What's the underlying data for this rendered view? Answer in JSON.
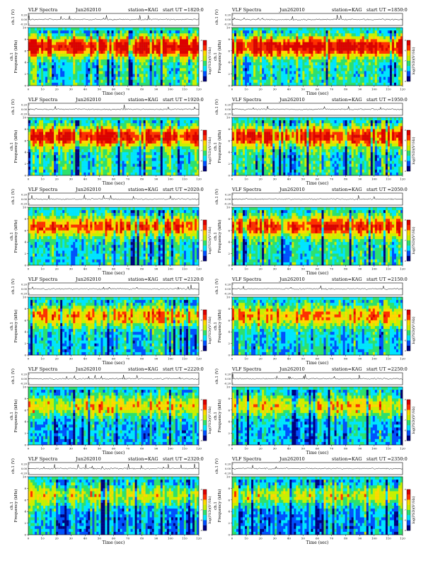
{
  "page": {
    "panel_header": {
      "product": "VLF Spectra",
      "date": "Jun262010",
      "station": "station=KAG",
      "start_prefix": "start  UT  ="
    },
    "wave_axis_label": "ch.1 (V)",
    "freq_axis_label": "Frequency  (kHz)",
    "freq_axis_channel": "ch.1",
    "time_axis_label": "Time  (sec)",
    "colorbar_label": "log(PSD)(V²/Hz)",
    "colorbar_ticks": [
      "-5",
      "-6",
      "-7",
      "-8",
      "-9"
    ],
    "colorscale": [
      "#000080",
      "#0050ff",
      "#00e5ff",
      "#2de06e",
      "#c8f000",
      "#ffd800",
      "#ff3000",
      "#dd0000"
    ]
  },
  "chart_data": [
    {
      "type": "heatmap",
      "title": "VLF Spectra  Jun262010  station=KAG  start UT =1820:0",
      "start_ut": "1820:0",
      "xlabel": "Time (sec)",
      "ylabel": "Frequency (kHz)",
      "xlim": [
        0,
        120
      ],
      "ylim": [
        0,
        10
      ],
      "x_ticks": [
        "0",
        "10",
        "20",
        "30",
        "40",
        "50",
        "60",
        "70",
        "80",
        "90",
        "100",
        "110",
        "120"
      ],
      "y_ticks": [
        "0",
        "2",
        "4",
        "6",
        "8",
        "10"
      ],
      "wave_ticks": [
        "0.20",
        "0.00",
        "-0.20"
      ],
      "wave_ylim": [
        -0.2,
        0.2
      ],
      "intensity": 0.9
    },
    {
      "type": "heatmap",
      "title": "VLF Spectra  Jun262010  station=KAG  start UT =1850:0",
      "start_ut": "1850:0",
      "xlabel": "Time (sec)",
      "ylabel": "Frequency (kHz)",
      "xlim": [
        0,
        120
      ],
      "ylim": [
        0,
        10
      ],
      "x_ticks": [
        "0",
        "10",
        "20",
        "30",
        "40",
        "50",
        "60",
        "70",
        "80",
        "90",
        "100",
        "110",
        "120"
      ],
      "y_ticks": [
        "0",
        "2",
        "4",
        "6",
        "8",
        "10"
      ],
      "wave_ticks": [
        "0.20",
        "0.00",
        "-0.20"
      ],
      "wave_ylim": [
        -0.2,
        0.2
      ],
      "intensity": 0.88
    },
    {
      "type": "heatmap",
      "title": "VLF Spectra  Jun262010  station=KAG  start UT =1920:0",
      "start_ut": "1920:0",
      "xlabel": "Time (sec)",
      "ylabel": "Frequency (kHz)",
      "xlim": [
        0,
        120
      ],
      "ylim": [
        0,
        10
      ],
      "x_ticks": [
        "0",
        "10",
        "20",
        "30",
        "40",
        "50",
        "60",
        "70",
        "80",
        "90",
        "100",
        "110",
        "120"
      ],
      "y_ticks": [
        "0",
        "2",
        "4",
        "6",
        "8",
        "10"
      ],
      "wave_ticks": [
        "0.20",
        "0.00",
        "-0.20"
      ],
      "wave_ylim": [
        -0.2,
        0.2
      ],
      "intensity": 0.83
    },
    {
      "type": "heatmap",
      "title": "VLF Spectra  Jun262010  station=KAG  start UT =1950:0",
      "start_ut": "1950:0",
      "xlabel": "Time (sec)",
      "ylabel": "Frequency (kHz)",
      "xlim": [
        0,
        120
      ],
      "ylim": [
        0,
        10
      ],
      "x_ticks": [
        "0",
        "10",
        "20",
        "30",
        "40",
        "50",
        "60",
        "70",
        "80",
        "90",
        "100",
        "110",
        "120"
      ],
      "y_ticks": [
        "0",
        "2",
        "4",
        "6",
        "8",
        "10"
      ],
      "wave_ticks": [
        "0.20",
        "0.00",
        "-0.20"
      ],
      "wave_ylim": [
        -0.2,
        0.2
      ],
      "intensity": 0.78
    },
    {
      "type": "heatmap",
      "title": "VLF Spectra  Jun262010  station=KAG  start UT =2020:0",
      "start_ut": "2020:0",
      "xlabel": "Time (sec)",
      "ylabel": "Frequency (kHz)",
      "xlim": [
        0,
        120
      ],
      "ylim": [
        0,
        10
      ],
      "x_ticks": [
        "0",
        "10",
        "20",
        "30",
        "40",
        "50",
        "60",
        "70",
        "80",
        "90",
        "100",
        "110",
        "120"
      ],
      "y_ticks": [
        "0",
        "2",
        "4",
        "6",
        "8",
        "10"
      ],
      "wave_ticks": [
        "0.20",
        "0.00",
        "-0.20"
      ],
      "wave_ylim": [
        -0.2,
        0.2
      ],
      "intensity": 0.7
    },
    {
      "type": "heatmap",
      "title": "VLF Spectra  Jun262010  station=KAG  start UT =2050:0",
      "start_ut": "2050:0",
      "xlabel": "Time (sec)",
      "ylabel": "Frequency (kHz)",
      "xlim": [
        0,
        120
      ],
      "ylim": [
        0,
        10
      ],
      "x_ticks": [
        "0",
        "10",
        "20",
        "30",
        "40",
        "50",
        "60",
        "70",
        "80",
        "90",
        "100",
        "110",
        "120"
      ],
      "y_ticks": [
        "0",
        "2",
        "4",
        "6",
        "8",
        "10"
      ],
      "wave_ticks": [
        "0.20",
        "0.00",
        "-0.20"
      ],
      "wave_ylim": [
        -0.2,
        0.2
      ],
      "intensity": 0.72
    },
    {
      "type": "heatmap",
      "title": "VLF Spectra  Jun262010  station=KAG  start UT =2120:0",
      "start_ut": "2120:0",
      "xlabel": "Time (sec)",
      "ylabel": "Frequency (kHz)",
      "xlim": [
        0,
        120
      ],
      "ylim": [
        0,
        10
      ],
      "x_ticks": [
        "0",
        "10",
        "20",
        "30",
        "40",
        "50",
        "60",
        "70",
        "80",
        "90",
        "100",
        "110",
        "120"
      ],
      "y_ticks": [
        "0",
        "2",
        "4",
        "6",
        "8",
        "10"
      ],
      "wave_ticks": [
        "0.20",
        "0.00",
        "-0.20"
      ],
      "wave_ylim": [
        -0.2,
        0.2
      ],
      "intensity": 0.62
    },
    {
      "type": "heatmap",
      "title": "VLF Spectra  Jun262010  station=KAG  start UT =2150:0",
      "start_ut": "2150:0",
      "xlabel": "Time (sec)",
      "ylabel": "Frequency (kHz)",
      "xlim": [
        0,
        120
      ],
      "ylim": [
        0,
        10
      ],
      "x_ticks": [
        "0",
        "10",
        "20",
        "30",
        "40",
        "50",
        "60",
        "70",
        "80",
        "90",
        "100",
        "110",
        "120"
      ],
      "y_ticks": [
        "0",
        "2",
        "4",
        "6",
        "8",
        "10"
      ],
      "wave_ticks": [
        "0.20",
        "0.00",
        "-0.20"
      ],
      "wave_ylim": [
        -0.2,
        0.2
      ],
      "intensity": 0.6
    },
    {
      "type": "heatmap",
      "title": "VLF Spectra  Jun262010  station=KAG  start UT =2220:0",
      "start_ut": "2220:0",
      "xlabel": "Time (sec)",
      "ylabel": "Frequency (kHz)",
      "xlim": [
        0,
        120
      ],
      "ylim": [
        0,
        10
      ],
      "x_ticks": [
        "0",
        "10",
        "20",
        "30",
        "40",
        "50",
        "60",
        "70",
        "80",
        "90",
        "100",
        "110",
        "120"
      ],
      "y_ticks": [
        "0",
        "2",
        "4",
        "6",
        "8",
        "10"
      ],
      "wave_ticks": [
        "0.20",
        "0.00",
        "-0.20"
      ],
      "wave_ylim": [
        -0.2,
        0.2
      ],
      "intensity": 0.53
    },
    {
      "type": "heatmap",
      "title": "VLF Spectra  Jun262010  station=KAG  start UT =2250:0",
      "start_ut": "2250:0",
      "xlabel": "Time (sec)",
      "ylabel": "Frequency (kHz)",
      "xlim": [
        0,
        120
      ],
      "ylim": [
        0,
        10
      ],
      "x_ticks": [
        "0",
        "10",
        "20",
        "30",
        "40",
        "50",
        "60",
        "70",
        "80",
        "90",
        "100",
        "110",
        "120"
      ],
      "y_ticks": [
        "0",
        "2",
        "4",
        "6",
        "8",
        "10"
      ],
      "wave_ticks": [
        "0.20",
        "0.00",
        "-0.20"
      ],
      "wave_ylim": [
        -0.2,
        0.2
      ],
      "intensity": 0.52
    },
    {
      "type": "heatmap",
      "title": "VLF Spectra  Jun262010  station=KAG  start UT =2320:0",
      "start_ut": "2320:0",
      "xlabel": "Time (sec)",
      "ylabel": "Frequency (kHz)",
      "xlim": [
        0,
        120
      ],
      "ylim": [
        0,
        10
      ],
      "x_ticks": [
        "0",
        "10",
        "20",
        "30",
        "40",
        "50",
        "60",
        "70",
        "80",
        "90",
        "100",
        "110",
        "120"
      ],
      "y_ticks": [
        "0",
        "2",
        "4",
        "6",
        "8",
        "10"
      ],
      "wave_ticks": [
        "0.20",
        "0.00",
        "-0.20"
      ],
      "wave_ylim": [
        -0.2,
        0.2
      ],
      "intensity": 0.45
    },
    {
      "type": "heatmap",
      "title": "VLF Spectra  Jun262010  station=KAG  start UT =2350:0",
      "start_ut": "2350:0",
      "xlabel": "Time (sec)",
      "ylabel": "Frequency (kHz)",
      "xlim": [
        0,
        120
      ],
      "ylim": [
        0,
        10
      ],
      "x_ticks": [
        "0",
        "10",
        "20",
        "30",
        "40",
        "50",
        "60",
        "70",
        "80",
        "90",
        "100",
        "110",
        "120"
      ],
      "y_ticks": [
        "0",
        "2",
        "4",
        "6",
        "8",
        "10"
      ],
      "wave_ticks": [
        "0.20",
        "0.00",
        "-0.20"
      ],
      "wave_ylim": [
        -0.2,
        0.2
      ],
      "intensity": 0.46
    }
  ]
}
